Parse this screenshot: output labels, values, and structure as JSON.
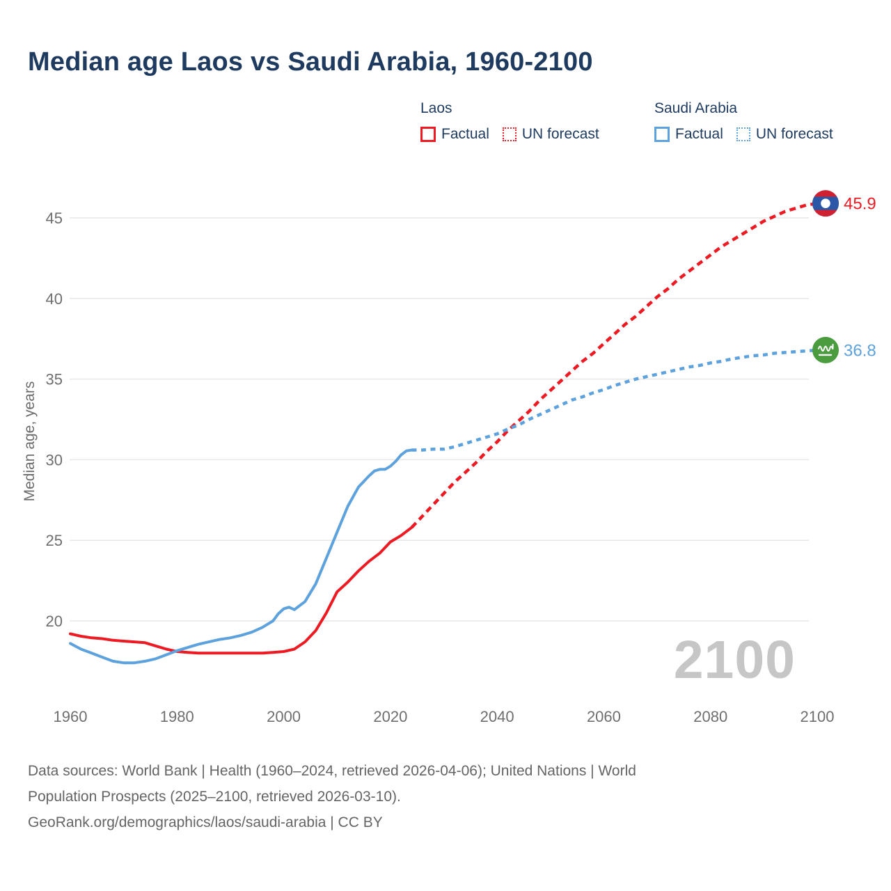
{
  "title": "Median age Laos vs Saudi Arabia, 1960-2100",
  "legend": {
    "groups": [
      {
        "title": "Laos",
        "items": [
          {
            "label": "Factual",
            "style": "solid",
            "color": "#ec1b23"
          },
          {
            "label": "UN forecast",
            "style": "dashed",
            "color": "#ec1b23"
          }
        ]
      },
      {
        "title": "Saudi Arabia",
        "items": [
          {
            "label": "Factual",
            "style": "solid",
            "color": "#5da1dd"
          },
          {
            "label": "UN forecast",
            "style": "dashed",
            "color": "#5da1dd"
          }
        ]
      }
    ]
  },
  "colors": {
    "laos_red": "#ec1b23",
    "saudi_blue": "#5da1dd",
    "title_navy": "#1e3a5f",
    "axis_gray": "#6e6e6e",
    "grid_gray": "#e7e7e7",
    "watermark_gray": "#c6c6c6",
    "footer_gray": "#646464",
    "laos_flag_red": "#ce2233",
    "laos_flag_blue": "#2b57a7",
    "saudi_flag_green": "#4a9c3f"
  },
  "chart_data": {
    "type": "line",
    "title": "Median age Laos vs Saudi Arabia, 1960-2100",
    "xlabel": "",
    "ylabel": "Median age, years",
    "x_ticks": [
      1960,
      1980,
      2000,
      2020,
      2040,
      2060,
      2080,
      2100
    ],
    "y_ticks": [
      20,
      25,
      30,
      35,
      40,
      45
    ],
    "xlim": [
      1960,
      2100
    ],
    "ylim_drawn": [
      16.5,
      46.5
    ],
    "grid": "horizontal-only",
    "watermark": "2100",
    "series": [
      {
        "name": "Laos — Factual",
        "country": "Laos",
        "kind": "Factual",
        "color": "#ec1b23",
        "dash": "solid",
        "points": [
          [
            1960,
            19.2
          ],
          [
            1962,
            19.05
          ],
          [
            1964,
            18.95
          ],
          [
            1966,
            18.9
          ],
          [
            1968,
            18.8
          ],
          [
            1970,
            18.75
          ],
          [
            1972,
            18.7
          ],
          [
            1974,
            18.65
          ],
          [
            1976,
            18.45
          ],
          [
            1978,
            18.25
          ],
          [
            1980,
            18.1
          ],
          [
            1982,
            18.05
          ],
          [
            1984,
            18.0
          ],
          [
            1986,
            18.0
          ],
          [
            1988,
            18.0
          ],
          [
            1990,
            18.0
          ],
          [
            1992,
            18.0
          ],
          [
            1994,
            18.0
          ],
          [
            1996,
            18.0
          ],
          [
            1998,
            18.05
          ],
          [
            2000,
            18.1
          ],
          [
            2002,
            18.25
          ],
          [
            2004,
            18.7
          ],
          [
            2006,
            19.4
          ],
          [
            2008,
            20.5
          ],
          [
            2010,
            21.8
          ],
          [
            2012,
            22.4
          ],
          [
            2014,
            23.1
          ],
          [
            2016,
            23.7
          ],
          [
            2018,
            24.2
          ],
          [
            2020,
            24.9
          ],
          [
            2022,
            25.3
          ],
          [
            2024,
            25.8
          ]
        ]
      },
      {
        "name": "Laos — UN forecast",
        "country": "Laos",
        "kind": "UN forecast",
        "color": "#ec1b23",
        "dash": "dashed",
        "points": [
          [
            2024,
            25.8
          ],
          [
            2026,
            26.5
          ],
          [
            2028,
            27.2
          ],
          [
            2030,
            27.9
          ],
          [
            2032,
            28.6
          ],
          [
            2034,
            29.2
          ],
          [
            2036,
            29.8
          ],
          [
            2038,
            30.5
          ],
          [
            2040,
            31.1
          ],
          [
            2042,
            31.8
          ],
          [
            2044,
            32.4
          ],
          [
            2046,
            33.0
          ],
          [
            2048,
            33.7
          ],
          [
            2050,
            34.3
          ],
          [
            2052,
            34.9
          ],
          [
            2054,
            35.5
          ],
          [
            2056,
            36.1
          ],
          [
            2058,
            36.6
          ],
          [
            2060,
            37.2
          ],
          [
            2062,
            37.8
          ],
          [
            2064,
            38.4
          ],
          [
            2066,
            38.9
          ],
          [
            2068,
            39.5
          ],
          [
            2070,
            40.1
          ],
          [
            2072,
            40.6
          ],
          [
            2074,
            41.2
          ],
          [
            2076,
            41.7
          ],
          [
            2078,
            42.2
          ],
          [
            2080,
            42.7
          ],
          [
            2082,
            43.2
          ],
          [
            2084,
            43.6
          ],
          [
            2086,
            44.0
          ],
          [
            2088,
            44.4
          ],
          [
            2090,
            44.8
          ],
          [
            2092,
            45.1
          ],
          [
            2094,
            45.4
          ],
          [
            2096,
            45.6
          ],
          [
            2098,
            45.8
          ],
          [
            2100,
            45.9
          ]
        ]
      },
      {
        "name": "Saudi Arabia — Factual",
        "country": "Saudi Arabia",
        "kind": "Factual",
        "color": "#5da1dd",
        "dash": "solid",
        "points": [
          [
            1960,
            18.6
          ],
          [
            1962,
            18.25
          ],
          [
            1964,
            18.0
          ],
          [
            1966,
            17.75
          ],
          [
            1968,
            17.5
          ],
          [
            1970,
            17.4
          ],
          [
            1972,
            17.4
          ],
          [
            1974,
            17.5
          ],
          [
            1976,
            17.65
          ],
          [
            1978,
            17.9
          ],
          [
            1980,
            18.15
          ],
          [
            1982,
            18.35
          ],
          [
            1984,
            18.55
          ],
          [
            1986,
            18.7
          ],
          [
            1988,
            18.85
          ],
          [
            1990,
            18.95
          ],
          [
            1992,
            19.1
          ],
          [
            1994,
            19.3
          ],
          [
            1996,
            19.6
          ],
          [
            1998,
            20.0
          ],
          [
            1999,
            20.45
          ],
          [
            2000,
            20.75
          ],
          [
            2001,
            20.85
          ],
          [
            2002,
            20.7
          ],
          [
            2004,
            21.2
          ],
          [
            2006,
            22.3
          ],
          [
            2008,
            23.9
          ],
          [
            2010,
            25.5
          ],
          [
            2012,
            27.1
          ],
          [
            2014,
            28.3
          ],
          [
            2016,
            29.0
          ],
          [
            2017,
            29.3
          ],
          [
            2018,
            29.4
          ],
          [
            2019,
            29.4
          ],
          [
            2020,
            29.6
          ],
          [
            2021,
            29.9
          ],
          [
            2022,
            30.3
          ],
          [
            2023,
            30.55
          ],
          [
            2024,
            30.6
          ]
        ]
      },
      {
        "name": "Saudi Arabia — UN forecast",
        "country": "Saudi Arabia",
        "kind": "UN forecast",
        "color": "#5da1dd",
        "dash": "dashed",
        "points": [
          [
            2024,
            30.6
          ],
          [
            2026,
            30.6
          ],
          [
            2028,
            30.65
          ],
          [
            2030,
            30.65
          ],
          [
            2032,
            30.8
          ],
          [
            2034,
            31.0
          ],
          [
            2036,
            31.2
          ],
          [
            2038,
            31.4
          ],
          [
            2040,
            31.6
          ],
          [
            2042,
            31.9
          ],
          [
            2044,
            32.15
          ],
          [
            2046,
            32.5
          ],
          [
            2048,
            32.8
          ],
          [
            2050,
            33.1
          ],
          [
            2052,
            33.4
          ],
          [
            2054,
            33.7
          ],
          [
            2056,
            33.9
          ],
          [
            2058,
            34.15
          ],
          [
            2060,
            34.35
          ],
          [
            2062,
            34.6
          ],
          [
            2064,
            34.8
          ],
          [
            2066,
            35.0
          ],
          [
            2068,
            35.15
          ],
          [
            2070,
            35.3
          ],
          [
            2072,
            35.45
          ],
          [
            2074,
            35.6
          ],
          [
            2076,
            35.75
          ],
          [
            2078,
            35.85
          ],
          [
            2080,
            36.0
          ],
          [
            2082,
            36.1
          ],
          [
            2084,
            36.25
          ],
          [
            2086,
            36.35
          ],
          [
            2088,
            36.45
          ],
          [
            2090,
            36.5
          ],
          [
            2092,
            36.6
          ],
          [
            2094,
            36.65
          ],
          [
            2096,
            36.7
          ],
          [
            2098,
            36.75
          ],
          [
            2100,
            36.8
          ]
        ]
      }
    ],
    "end_markers": [
      {
        "flag": "laos-flag",
        "label": "45.9",
        "value": 45.9,
        "color": "#ec1b23"
      },
      {
        "flag": "saudi-arabia-flag",
        "label": "36.8",
        "value": 36.8,
        "color": "#5da1dd"
      }
    ],
    "legend_position": "top-right"
  },
  "footer": {
    "lines": [
      "Data sources: World Bank | Health (1960–2024, retrieved 2026-04-06); United Nations | World",
      "Population Prospects (2025–2100, retrieved 2026-03-10).",
      "GeoRank.org/demographics/laos/saudi-arabia | CC BY"
    ]
  }
}
